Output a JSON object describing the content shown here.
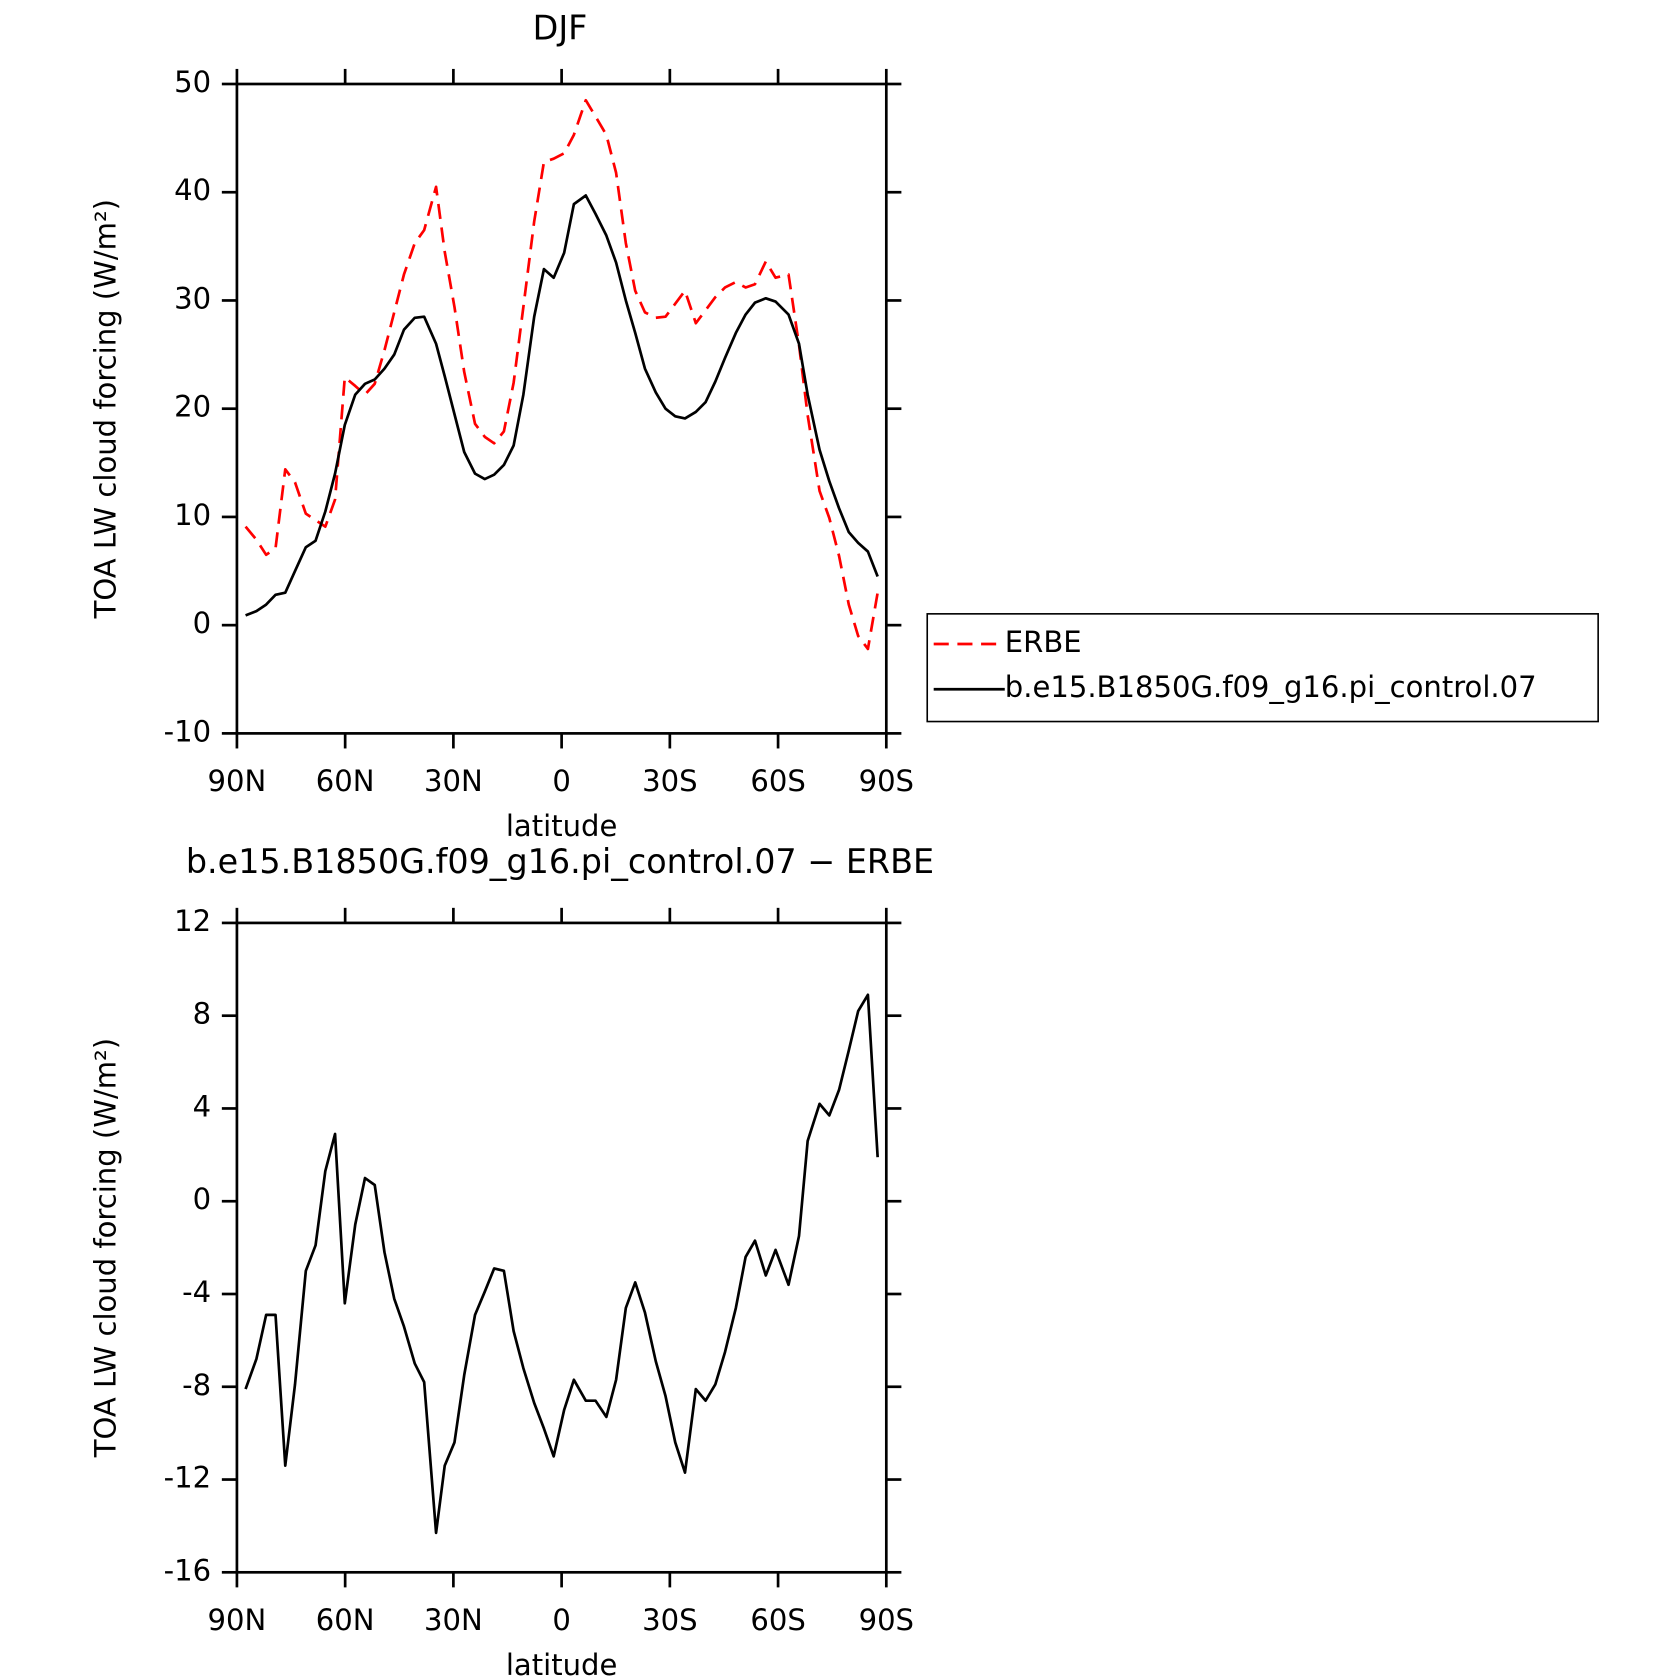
{
  "chart_data": [
    {
      "type": "line",
      "title": "DJF",
      "xlabel": "latitude",
      "ylabel": "TOA LW cloud forcing (W/m²)",
      "x": [
        87.6,
        84.6,
        81.9,
        79.3,
        76.6,
        73.9,
        70.9,
        68.2,
        65.5,
        62.8,
        60.1,
        57.2,
        54.5,
        51.8,
        49.1,
        46.4,
        43.7,
        40.7,
        38.1,
        34.8,
        32.4,
        29.7,
        27.0,
        24.0,
        21.3,
        18.7,
        16.0,
        13.3,
        10.6,
        7.6,
        4.9,
        2.2,
        -0.7,
        -3.4,
        -6.7,
        -9.4,
        -12.4,
        -15.1,
        -17.8,
        -20.4,
        -23.1,
        -26.1,
        -28.8,
        -31.5,
        -34.2,
        -37.2,
        -39.9,
        -42.6,
        -45.3,
        -48.3,
        -51.0,
        -53.6,
        -56.6,
        -59.3,
        -62.9,
        -65.8,
        -68.2,
        -71.5,
        -74.2,
        -76.9,
        -79.6,
        -82.2,
        -84.9,
        -87.6
      ],
      "series": [
        {
          "name": "ERBE",
          "color": "#ff0000",
          "linestyle": "dashed",
          "values": [
            9.1,
            7.9,
            6.5,
            7.1,
            14.4,
            13.2,
            10.3,
            9.7,
            9.1,
            11.6,
            22.9,
            22.1,
            21.3,
            22.3,
            25.4,
            28.9,
            32.4,
            35.3,
            36.5,
            40.5,
            34.5,
            29.4,
            23.4,
            18.6,
            17.4,
            16.8,
            17.9,
            22.4,
            29.4,
            37.3,
            42.8,
            43.1,
            43.6,
            45.3,
            48.5,
            47.0,
            45.3,
            41.8,
            35.3,
            30.9,
            28.9,
            28.4,
            28.5,
            29.7,
            30.9,
            27.9,
            29.1,
            30.3,
            31.2,
            31.7,
            31.2,
            31.5,
            33.6,
            32.1,
            32.4,
            25.9,
            19.4,
            12.4,
            9.9,
            6.4,
            1.9,
            -1.0,
            -2.2,
            3.0
          ]
        },
        {
          "name": "b.e15.B1850G.f09_g16.pi_control.07",
          "color": "#000000",
          "linestyle": "solid",
          "values": [
            0.9,
            1.3,
            1.9,
            2.8,
            3.0,
            5.0,
            7.2,
            7.8,
            10.5,
            14.0,
            18.5,
            21.3,
            22.3,
            22.7,
            23.7,
            25.0,
            27.3,
            28.4,
            28.5,
            26.0,
            23.0,
            19.5,
            16.0,
            14.0,
            13.5,
            13.9,
            14.8,
            16.6,
            21.3,
            28.5,
            32.9,
            32.1,
            34.4,
            38.9,
            39.7,
            38.0,
            36.0,
            33.5,
            30.0,
            27.0,
            23.7,
            21.5,
            20.0,
            19.3,
            19.1,
            19.7,
            20.6,
            22.5,
            24.7,
            27.0,
            28.7,
            29.8,
            30.2,
            29.9,
            28.7,
            26.0,
            21.3,
            16.2,
            13.3,
            10.8,
            8.6,
            7.6,
            6.8,
            4.5
          ]
        }
      ],
      "xlim": [
        90,
        -90
      ],
      "xticks": [
        {
          "value": 90,
          "label": "90N"
        },
        {
          "value": 60,
          "label": "60N"
        },
        {
          "value": 30,
          "label": "30N"
        },
        0,
        {
          "value": -30,
          "label": "30S"
        },
        {
          "value": -60,
          "label": "60S"
        },
        {
          "value": -90,
          "label": "90S"
        }
      ],
      "ylim": [
        -10,
        50
      ],
      "yticks": [
        -10,
        0,
        10,
        20,
        30,
        40,
        50
      ],
      "legend": "right"
    },
    {
      "type": "line",
      "title": "b.e15.B1850G.f09_g16.pi_control.07 − ERBE",
      "xlabel": "latitude",
      "ylabel": "TOA LW cloud forcing (W/m²)",
      "x": [
        87.6,
        84.6,
        81.9,
        79.3,
        76.6,
        73.9,
        70.9,
        68.2,
        65.5,
        62.8,
        60.1,
        57.2,
        54.5,
        51.8,
        49.1,
        46.4,
        43.7,
        40.7,
        38.1,
        34.8,
        32.4,
        29.7,
        27.0,
        24.0,
        21.3,
        18.7,
        16.0,
        13.3,
        10.6,
        7.6,
        4.9,
        2.2,
        -0.7,
        -3.4,
        -6.7,
        -9.4,
        -12.4,
        -15.1,
        -17.8,
        -20.4,
        -23.1,
        -26.1,
        -28.8,
        -31.5,
        -34.2,
        -37.2,
        -39.9,
        -42.6,
        -45.3,
        -48.3,
        -51.0,
        -53.6,
        -56.6,
        -59.3,
        -62.9,
        -65.8,
        -68.2,
        -71.5,
        -74.2,
        -76.9,
        -79.6,
        -82.2,
        -84.9,
        -87.6
      ],
      "values": [
        -8.1,
        -6.8,
        -4.9,
        -4.9,
        -11.4,
        -7.9,
        -3.0,
        -1.9,
        1.3,
        2.9,
        -4.4,
        -1.0,
        1.0,
        0.7,
        -2.2,
        -4.2,
        -5.4,
        -7.0,
        -7.8,
        -14.3,
        -11.4,
        -10.4,
        -7.5,
        -4.9,
        -3.9,
        -2.9,
        -3.0,
        -5.6,
        -7.2,
        -8.7,
        -9.8,
        -11.0,
        -9.0,
        -7.7,
        -8.6,
        -8.6,
        -9.3,
        -7.7,
        -4.6,
        -3.5,
        -4.8,
        -6.9,
        -8.4,
        -10.4,
        -11.7,
        -8.1,
        -8.6,
        -7.9,
        -6.5,
        -4.6,
        -2.4,
        -1.7,
        -3.2,
        -2.1,
        -3.6,
        -1.5,
        2.6,
        4.2,
        3.7,
        4.8,
        6.5,
        8.2,
        8.9,
        1.9
      ],
      "color": "#000000",
      "xlim": [
        90,
        -90
      ],
      "xticks": [
        {
          "value": 90,
          "label": "90N"
        },
        {
          "value": 60,
          "label": "60N"
        },
        {
          "value": 30,
          "label": "30N"
        },
        0,
        {
          "value": -30,
          "label": "30S"
        },
        {
          "value": -60,
          "label": "60S"
        },
        {
          "value": -90,
          "label": "90S"
        }
      ],
      "ylim": [
        -16,
        12
      ],
      "yticks": [
        -16,
        -12,
        -8,
        -4,
        0,
        4,
        8,
        12
      ]
    }
  ]
}
